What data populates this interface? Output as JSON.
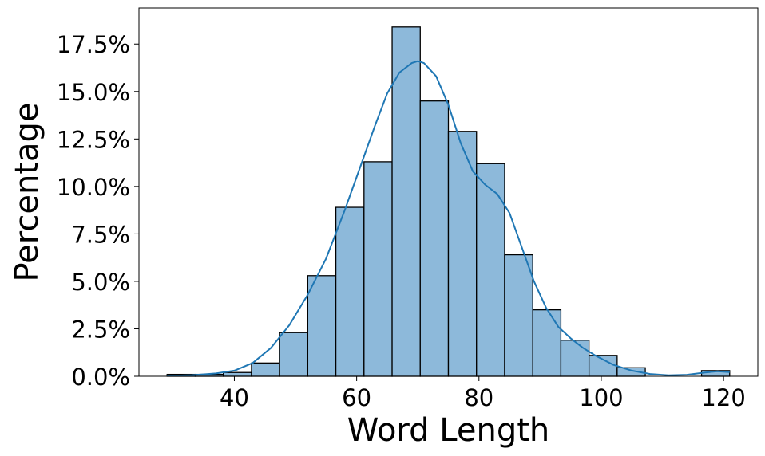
{
  "chart_data": {
    "type": "bar",
    "title": "",
    "xlabel": "Word Length",
    "ylabel": "Percentage",
    "xlim": [
      24.4,
      125.6
    ],
    "ylim": [
      0,
      19.4
    ],
    "xticks": [
      40,
      60,
      80,
      100,
      120
    ],
    "xtick_labels": [
      "40",
      "60",
      "80",
      "100",
      "120"
    ],
    "yticks": [
      0,
      2.5,
      5,
      7.5,
      10,
      12.5,
      15,
      17.5
    ],
    "ytick_labels": [
      "0.0%",
      "2.5%",
      "5.0%",
      "7.5%",
      "10.0%",
      "12.5%",
      "15.0%",
      "17.5%"
    ],
    "bins": [
      [
        29,
        33.6
      ],
      [
        33.6,
        38.2
      ],
      [
        38.2,
        42.8
      ],
      [
        42.8,
        47.4
      ],
      [
        47.4,
        52.0
      ],
      [
        52.0,
        56.6
      ],
      [
        56.6,
        61.2
      ],
      [
        61.2,
        65.8
      ],
      [
        65.8,
        70.4
      ],
      [
        70.4,
        75.0
      ],
      [
        75.0,
        79.6
      ],
      [
        79.6,
        84.2
      ],
      [
        84.2,
        88.8
      ],
      [
        88.8,
        93.4
      ],
      [
        93.4,
        98.0
      ],
      [
        98.0,
        102.6
      ],
      [
        102.6,
        107.2
      ],
      [
        107.2,
        111.8
      ],
      [
        111.8,
        116.4
      ],
      [
        116.4,
        121.0
      ]
    ],
    "values": [
      0.1,
      0.1,
      0.2,
      0.7,
      2.3,
      5.3,
      8.9,
      11.3,
      18.4,
      14.5,
      12.9,
      11.2,
      6.4,
      3.5,
      1.9,
      1.1,
      0.45,
      0,
      0,
      0.3
    ],
    "kde": {
      "x": [
        29,
        33,
        37,
        40,
        43,
        46,
        49,
        52,
        55,
        58,
        61,
        63,
        65,
        67,
        69,
        70,
        71,
        73,
        75,
        77,
        79,
        81,
        83,
        85,
        87,
        89,
        91,
        93,
        95,
        97,
        99,
        102,
        105,
        108,
        111,
        114,
        117,
        119,
        121
      ],
      "y": [
        0.02,
        0.06,
        0.15,
        0.3,
        0.7,
        1.5,
        2.7,
        4.3,
        6.2,
        8.7,
        11.4,
        13.2,
        14.9,
        16.0,
        16.5,
        16.6,
        16.5,
        15.8,
        14.3,
        12.3,
        10.8,
        10.1,
        9.6,
        8.6,
        6.8,
        5.0,
        3.6,
        2.6,
        2.0,
        1.5,
        1.1,
        0.6,
        0.3,
        0.12,
        0.05,
        0.08,
        0.2,
        0.26,
        0.22
      ]
    },
    "bar_fill": "#8db9da",
    "bar_edge": "#000000",
    "kde_color": "#1f77b4",
    "legend": "none",
    "grid": false
  }
}
